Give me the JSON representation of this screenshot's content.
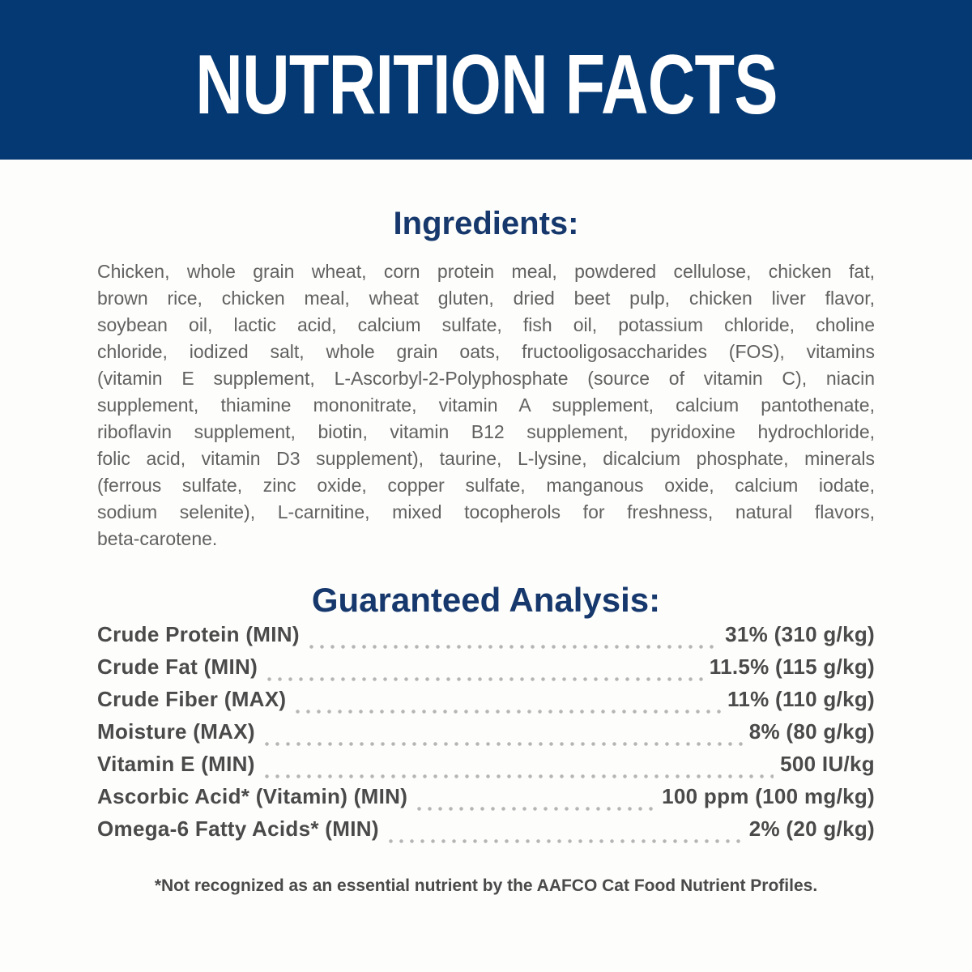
{
  "banner": {
    "title": "NUTRITION FACTS"
  },
  "ingredients": {
    "heading": "Ingredients:",
    "lines": [
      "Chicken, whole grain wheat, corn protein meal, powdered cellulose, chicken fat,",
      "brown rice, chicken meal, wheat gluten, dried beet pulp, chicken liver flavor,",
      "soybean oil, lactic acid, calcium sulfate, fish oil, potassium chloride, choline",
      "chloride, iodized salt, whole grain oats, fructooligosaccharides (FOS), vitamins",
      "(vitamin E supplement, L-Ascorbyl-2-Polyphosphate (source of vitamin C), niacin",
      "supplement, thiamine mononitrate, vitamin A supplement, calcium pantothenate,",
      "riboflavin supplement, biotin, vitamin B12 supplement, pyridoxine hydrochloride,",
      "folic acid, vitamin D3 supplement), taurine, L-lysine, dicalcium phosphate, minerals",
      "(ferrous sulfate, zinc oxide, copper sulfate, manganous oxide, calcium iodate,",
      "sodium selenite), L-carnitine, mixed tocopherols for freshness, natural flavors,",
      "beta-carotene."
    ]
  },
  "analysis": {
    "heading": "Guaranteed Analysis:",
    "rows": [
      {
        "label": "Crude Protein (MIN)",
        "value": "31% (310 g/kg)"
      },
      {
        "label": "Crude Fat (MIN)",
        "value": "11.5% (115 g/kg)"
      },
      {
        "label": "Crude Fiber (MAX)",
        "value": "11% (110 g/kg)"
      },
      {
        "label": "Moisture (MAX)",
        "value": "8% (80 g/kg)"
      },
      {
        "label": "Vitamin E (MIN)",
        "value": "500 IU/kg"
      },
      {
        "label": "Ascorbic Acid* (Vitamin) (MIN)",
        "value": "100 ppm (100 mg/kg)"
      },
      {
        "label": "Omega-6 Fatty Acids* (MIN)",
        "value": "2% (20 g/kg)"
      }
    ]
  },
  "footnote": "*Not recognized as an essential nutrient by the AAFCO Cat Food Nutrient Profiles.",
  "colors": {
    "banner_bg": "#053973",
    "heading_color": "#16386c",
    "body_text": "#616161",
    "analysis_text": "#4a4a4a",
    "dots_color": "#b5b5b5",
    "page_bg": "#fdfdfb"
  }
}
